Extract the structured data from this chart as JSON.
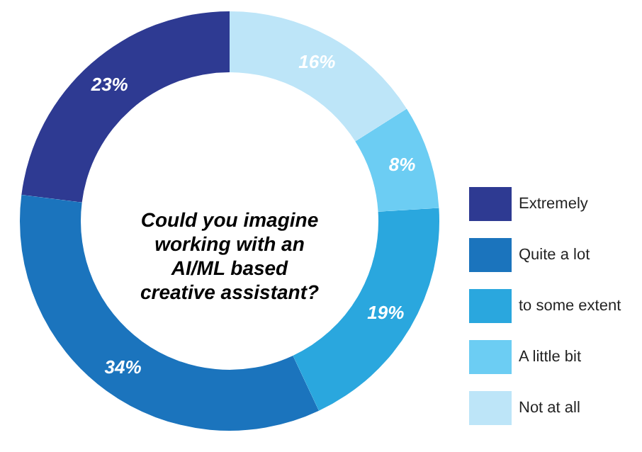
{
  "chart_data": {
    "type": "donut",
    "title": "Could you imagine working with an AI/ML based creative assistant?",
    "categories": [
      "Extremely",
      "Quite a lot",
      "to some extent",
      "A little bit",
      "Not at all"
    ],
    "values": [
      23,
      34,
      19,
      8,
      16
    ],
    "value_labels": [
      "23%",
      "34%",
      "19%",
      "8%",
      "16%"
    ],
    "colors": [
      "#2e3a92",
      "#1b74bd",
      "#2aa7de",
      "#6ccdf3",
      "#bde5f8"
    ],
    "legend": "right"
  }
}
